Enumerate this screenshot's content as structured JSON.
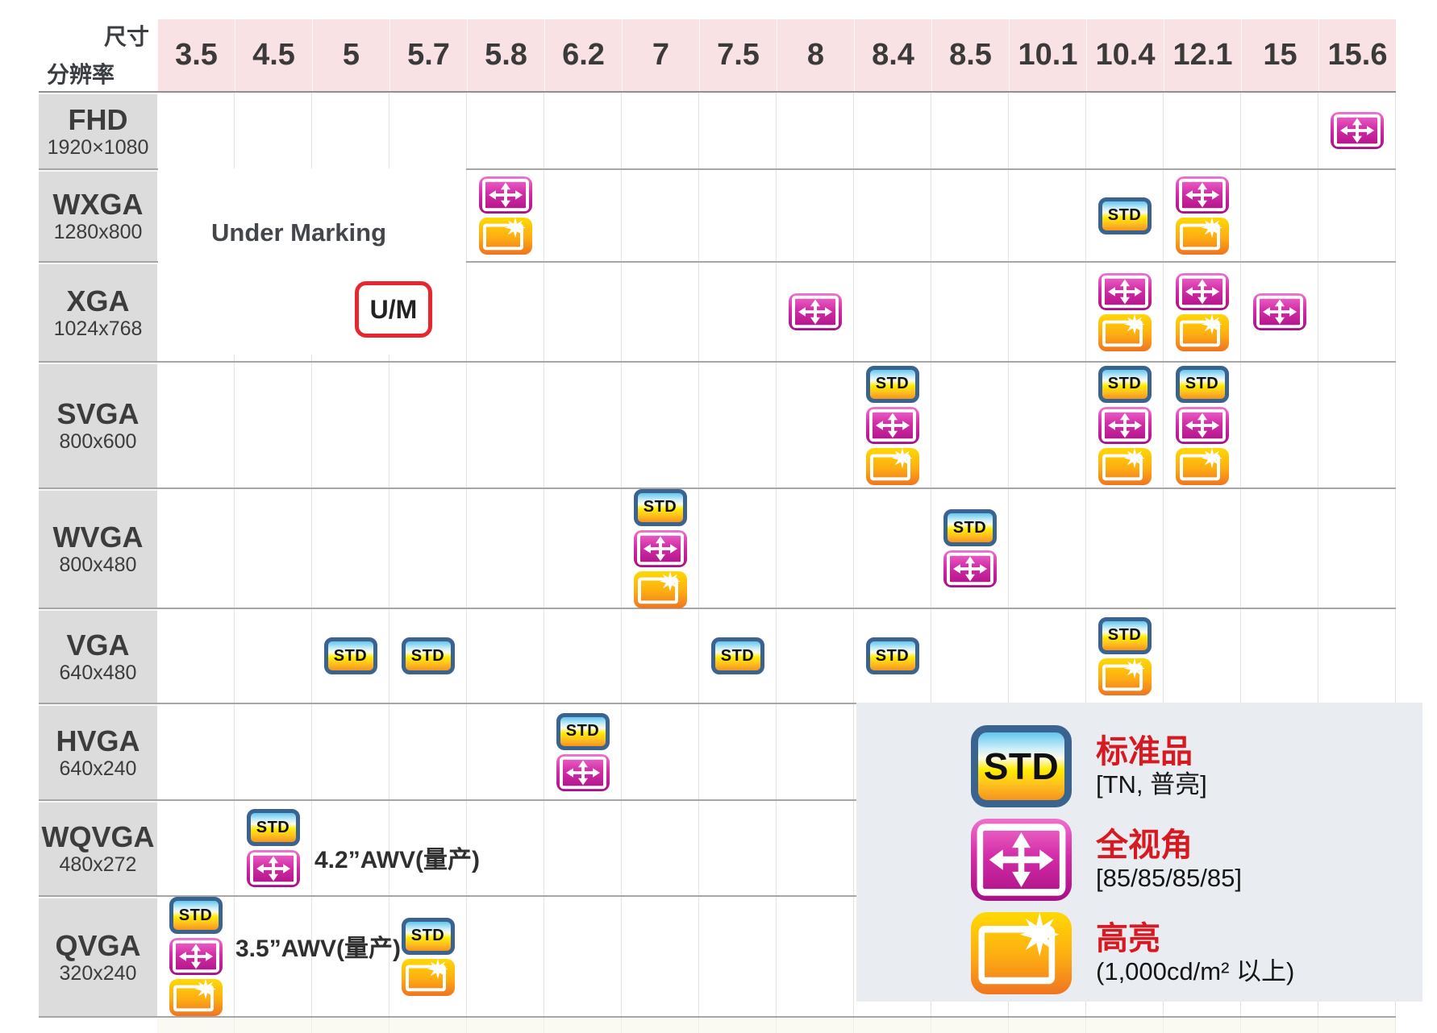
{
  "header": {
    "corner_top": "尺寸",
    "corner_bottom": "分辨率"
  },
  "chart_data": {
    "type": "table",
    "title": "LCD panel lineup matrix (size vs resolution)",
    "columns_axis_label": "尺寸",
    "rows_axis_label": "分辨率",
    "columns": [
      "3.5",
      "4.5",
      "5",
      "5.7",
      "5.8",
      "6.2",
      "7",
      "7.5",
      "8",
      "8.4",
      "8.5",
      "10.1",
      "10.4",
      "12.1",
      "15",
      "15.6"
    ],
    "icon_labels": {
      "std": "STD",
      "awv": "wide-view-arrows",
      "bright": "high-bright-star"
    },
    "rows": [
      {
        "name": "FHD",
        "resolution": "1920×1080",
        "cells": {
          "15.6": [
            "awv"
          ]
        }
      },
      {
        "name": "WXGA",
        "resolution": "1280x800",
        "cells": {
          "5.8": [
            "awv",
            "bright"
          ],
          "10.4": [
            "std"
          ],
          "12.1": [
            "awv",
            "bright"
          ]
        }
      },
      {
        "name": "XGA",
        "resolution": "1024x768",
        "cells": {
          "8": [
            "awv"
          ],
          "10.4": [
            "awv",
            "bright"
          ],
          "12.1": [
            "awv",
            "bright"
          ],
          "15": [
            "awv"
          ]
        }
      },
      {
        "name": "SVGA",
        "resolution": "800x600",
        "cells": {
          "8.4": [
            "std",
            "awv",
            "bright"
          ],
          "10.4": [
            "std",
            "awv",
            "bright"
          ],
          "12.1": [
            "std",
            "awv",
            "bright"
          ]
        }
      },
      {
        "name": "WVGA",
        "resolution": "800x480",
        "cells": {
          "7": [
            "std",
            "awv",
            "bright"
          ],
          "8.5": [
            "std",
            "awv"
          ]
        }
      },
      {
        "name": "VGA",
        "resolution": "640x480",
        "cells": {
          "5": [
            "std"
          ],
          "5.7": [
            "std"
          ],
          "7.5": [
            "std"
          ],
          "8.4": [
            "std"
          ],
          "10.4": [
            "std",
            "bright"
          ]
        }
      },
      {
        "name": "HVGA",
        "resolution": "640x240",
        "cells": {
          "6.2": [
            "std",
            "awv"
          ]
        }
      },
      {
        "name": "WQVGA",
        "resolution": "480x272",
        "cells": {
          "4.5": [
            "std",
            "awv"
          ]
        }
      },
      {
        "name": "QVGA",
        "resolution": "320x240",
        "cells": {
          "3.5": [
            "std",
            "awv",
            "bright"
          ],
          "5.7": [
            "std",
            "bright"
          ]
        }
      }
    ]
  },
  "annotations": {
    "under_marking": "Under Marking",
    "um_label": "U/M",
    "wqvga_note": "4.2”AWV(量产)",
    "qvga_note": "3.5”AWV(量产)"
  },
  "legend": {
    "items": [
      {
        "icon": "std",
        "icon_text": "STD",
        "title": "标准品",
        "sub": "[TN, 普亮]"
      },
      {
        "icon": "awv",
        "icon_text": "",
        "title": "全视角",
        "sub": "[85/85/85/85]"
      },
      {
        "icon": "bright",
        "icon_text": "",
        "title": "高亮",
        "sub": "(1,000cd/m² 以上)"
      }
    ]
  },
  "colors": {
    "header-pink": "#f9e2e4",
    "label-gray": "#dcdcdc",
    "row-line": "#a6a6a6",
    "col-line": "#e6e3da",
    "strip-bg": "#fbfaf2",
    "legend-bg": "#e9edf2",
    "red": "#d71921",
    "um-red": "#e8262d",
    "std-border": "#3a648f",
    "awv-main": "#c0169a",
    "bright-main": "#f99d14"
  }
}
